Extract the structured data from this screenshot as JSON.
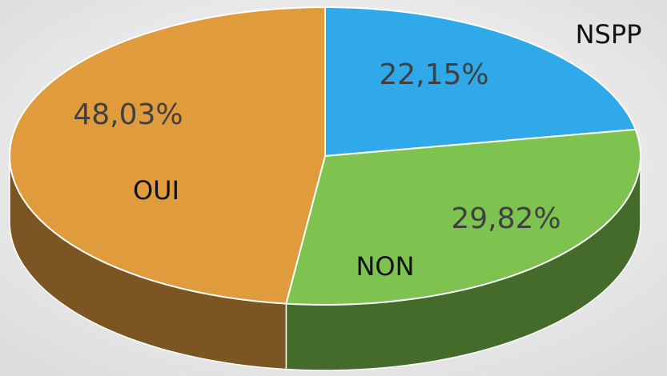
{
  "chart_data": {
    "type": "pie3d",
    "categories": [
      "NSPP",
      "NON",
      "OUI"
    ],
    "values": [
      22.15,
      29.82,
      48.03
    ],
    "value_labels": [
      "22,15%",
      "29,82%",
      "48,03%"
    ],
    "colors": [
      "#2fa9ea",
      "#7ec24f",
      "#e09b3d"
    ]
  }
}
